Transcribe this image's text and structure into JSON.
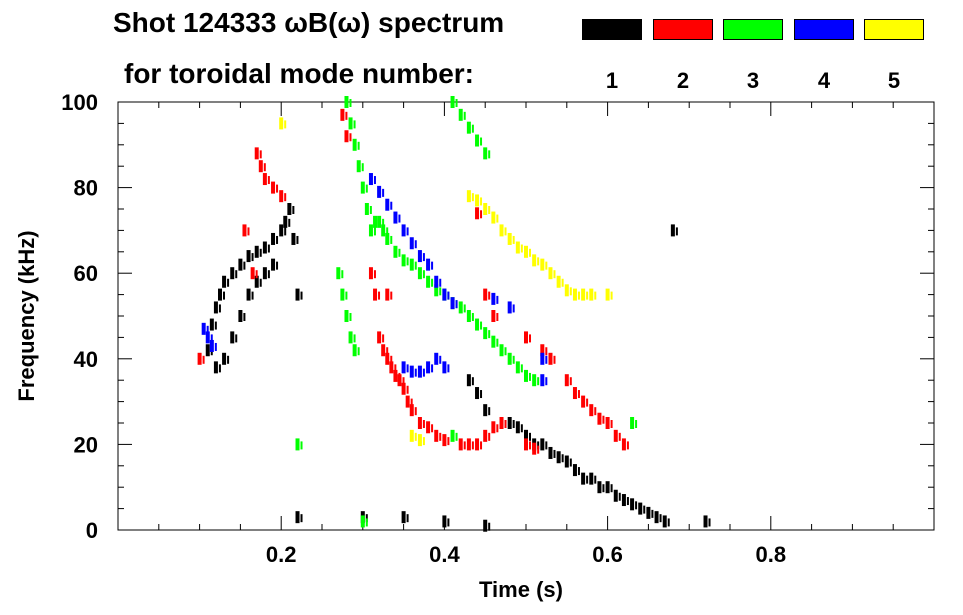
{
  "chart_data": {
    "type": "scatter",
    "title_line1": "Shot 124333 ωB(ω) spectrum",
    "title_line2": "for toroidal mode number:",
    "xlabel": "Time (s)",
    "ylabel": "Frequency (kHz)",
    "xlim": [
      0.0,
      1.0
    ],
    "ylim": [
      0,
      100
    ],
    "xticks": [
      "0.2",
      "0.4",
      "0.6",
      "0.8"
    ],
    "xtick_values": [
      0.2,
      0.4,
      0.6,
      0.8
    ],
    "yticks": [
      "0",
      "20",
      "40",
      "60",
      "80",
      "100"
    ],
    "ytick_values": [
      0,
      20,
      40,
      60,
      80,
      100
    ],
    "grid": false,
    "legend_position": "top-right",
    "series": [
      {
        "name": "1",
        "color": "#000000",
        "points": [
          [
            0.11,
            42
          ],
          [
            0.115,
            48
          ],
          [
            0.12,
            52
          ],
          [
            0.125,
            55
          ],
          [
            0.13,
            58
          ],
          [
            0.14,
            60
          ],
          [
            0.15,
            62
          ],
          [
            0.16,
            64
          ],
          [
            0.17,
            65
          ],
          [
            0.18,
            66
          ],
          [
            0.19,
            68
          ],
          [
            0.2,
            70
          ],
          [
            0.205,
            72
          ],
          [
            0.13,
            40
          ],
          [
            0.14,
            45
          ],
          [
            0.15,
            50
          ],
          [
            0.16,
            55
          ],
          [
            0.17,
            58
          ],
          [
            0.18,
            60
          ],
          [
            0.19,
            62
          ],
          [
            0.12,
            38
          ],
          [
            0.21,
            75
          ],
          [
            0.215,
            68
          ],
          [
            0.22,
            55
          ],
          [
            0.43,
            35
          ],
          [
            0.44,
            32
          ],
          [
            0.45,
            28
          ],
          [
            0.48,
            25
          ],
          [
            0.49,
            24
          ],
          [
            0.5,
            22
          ],
          [
            0.51,
            20
          ],
          [
            0.52,
            20
          ],
          [
            0.53,
            18
          ],
          [
            0.54,
            17
          ],
          [
            0.55,
            16
          ],
          [
            0.56,
            14
          ],
          [
            0.57,
            12
          ],
          [
            0.58,
            12
          ],
          [
            0.59,
            10
          ],
          [
            0.6,
            10
          ],
          [
            0.61,
            8
          ],
          [
            0.62,
            7
          ],
          [
            0.63,
            6
          ],
          [
            0.64,
            5
          ],
          [
            0.65,
            4
          ],
          [
            0.66,
            3
          ],
          [
            0.67,
            2
          ],
          [
            0.68,
            70
          ],
          [
            0.72,
            2
          ],
          [
            0.35,
            3
          ],
          [
            0.4,
            2
          ],
          [
            0.45,
            1
          ],
          [
            0.3,
            3
          ],
          [
            0.22,
            3
          ]
        ]
      },
      {
        "name": "2",
        "color": "#ff0000",
        "points": [
          [
            0.17,
            88
          ],
          [
            0.175,
            85
          ],
          [
            0.18,
            82
          ],
          [
            0.19,
            80
          ],
          [
            0.2,
            78
          ],
          [
            0.155,
            70
          ],
          [
            0.165,
            60
          ],
          [
            0.31,
            60
          ],
          [
            0.315,
            55
          ],
          [
            0.32,
            45
          ],
          [
            0.325,
            42
          ],
          [
            0.33,
            40
          ],
          [
            0.335,
            38
          ],
          [
            0.34,
            36
          ],
          [
            0.345,
            35
          ],
          [
            0.35,
            33
          ],
          [
            0.355,
            30
          ],
          [
            0.36,
            28
          ],
          [
            0.37,
            25
          ],
          [
            0.38,
            24
          ],
          [
            0.39,
            22
          ],
          [
            0.4,
            21
          ],
          [
            0.42,
            20
          ],
          [
            0.43,
            20
          ],
          [
            0.44,
            20
          ],
          [
            0.45,
            22
          ],
          [
            0.46,
            24
          ],
          [
            0.47,
            25
          ],
          [
            0.5,
            20
          ],
          [
            0.51,
            19
          ],
          [
            0.45,
            55
          ],
          [
            0.46,
            50
          ],
          [
            0.5,
            45
          ],
          [
            0.52,
            42
          ],
          [
            0.53,
            40
          ],
          [
            0.55,
            35
          ],
          [
            0.56,
            32
          ],
          [
            0.57,
            30
          ],
          [
            0.58,
            28
          ],
          [
            0.59,
            26
          ],
          [
            0.6,
            25
          ],
          [
            0.61,
            22
          ],
          [
            0.62,
            20
          ],
          [
            0.44,
            74
          ],
          [
            0.275,
            97
          ],
          [
            0.28,
            92
          ],
          [
            0.1,
            40
          ],
          [
            0.33,
            55
          ]
        ]
      },
      {
        "name": "3",
        "color": "#00ff00",
        "points": [
          [
            0.28,
            100
          ],
          [
            0.285,
            95
          ],
          [
            0.29,
            90
          ],
          [
            0.295,
            85
          ],
          [
            0.3,
            80
          ],
          [
            0.305,
            75
          ],
          [
            0.31,
            70
          ],
          [
            0.315,
            72
          ],
          [
            0.32,
            72
          ],
          [
            0.325,
            70
          ],
          [
            0.33,
            68
          ],
          [
            0.34,
            65
          ],
          [
            0.35,
            63
          ],
          [
            0.36,
            62
          ],
          [
            0.37,
            60
          ],
          [
            0.38,
            58
          ],
          [
            0.39,
            56
          ],
          [
            0.4,
            55
          ],
          [
            0.41,
            53
          ],
          [
            0.42,
            52
          ],
          [
            0.43,
            50
          ],
          [
            0.44,
            48
          ],
          [
            0.45,
            46
          ],
          [
            0.46,
            44
          ],
          [
            0.47,
            42
          ],
          [
            0.48,
            40
          ],
          [
            0.49,
            38
          ],
          [
            0.5,
            36
          ],
          [
            0.51,
            35
          ],
          [
            0.27,
            60
          ],
          [
            0.275,
            55
          ],
          [
            0.28,
            50
          ],
          [
            0.285,
            45
          ],
          [
            0.29,
            42
          ],
          [
            0.41,
            100
          ],
          [
            0.42,
            97
          ],
          [
            0.43,
            94
          ],
          [
            0.44,
            91
          ],
          [
            0.45,
            88
          ],
          [
            0.41,
            22
          ],
          [
            0.63,
            25
          ],
          [
            0.3,
            2
          ],
          [
            0.22,
            20
          ]
        ]
      },
      {
        "name": "4",
        "color": "#0000ff",
        "points": [
          [
            0.105,
            47
          ],
          [
            0.11,
            45
          ],
          [
            0.115,
            43
          ],
          [
            0.31,
            82
          ],
          [
            0.32,
            79
          ],
          [
            0.33,
            76
          ],
          [
            0.34,
            73
          ],
          [
            0.35,
            70
          ],
          [
            0.36,
            67
          ],
          [
            0.37,
            64
          ],
          [
            0.38,
            62
          ],
          [
            0.39,
            58
          ],
          [
            0.4,
            55
          ],
          [
            0.41,
            53
          ],
          [
            0.35,
            38
          ],
          [
            0.36,
            37
          ],
          [
            0.37,
            37
          ],
          [
            0.38,
            38
          ],
          [
            0.39,
            40
          ],
          [
            0.4,
            38
          ],
          [
            0.46,
            54
          ],
          [
            0.48,
            52
          ],
          [
            0.52,
            40
          ],
          [
            0.52,
            35
          ]
        ]
      },
      {
        "name": "5",
        "color": "#ffff00",
        "points": [
          [
            0.43,
            78
          ],
          [
            0.44,
            77
          ],
          [
            0.45,
            75
          ],
          [
            0.46,
            73
          ],
          [
            0.47,
            70
          ],
          [
            0.48,
            68
          ],
          [
            0.49,
            66
          ],
          [
            0.5,
            65
          ],
          [
            0.51,
            63
          ],
          [
            0.52,
            62
          ],
          [
            0.53,
            60
          ],
          [
            0.54,
            58
          ],
          [
            0.55,
            56
          ],
          [
            0.56,
            55
          ],
          [
            0.57,
            55
          ],
          [
            0.58,
            55
          ],
          [
            0.36,
            22
          ],
          [
            0.37,
            21
          ],
          [
            0.2,
            95
          ],
          [
            0.6,
            55
          ]
        ]
      }
    ]
  },
  "icons": {
    "swatch_1": "black-swatch",
    "swatch_2": "red-swatch",
    "swatch_3": "green-swatch",
    "swatch_4": "blue-swatch",
    "swatch_5": "yellow-swatch"
  }
}
